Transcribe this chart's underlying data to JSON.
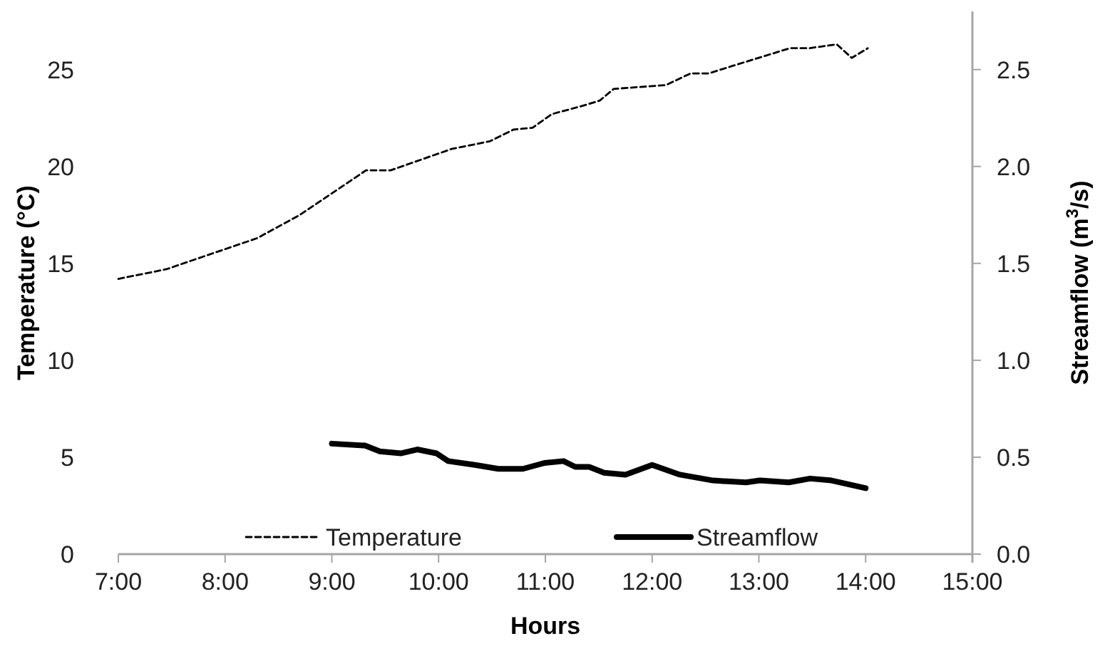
{
  "chart_data": {
    "type": "line",
    "xlabel": "Hours",
    "ylabel": "Temperature (°C)",
    "y2label": "Streamflow (m$^{3}$/s)",
    "xlim": [
      7,
      15
    ],
    "xticks": [
      {
        "value": 7,
        "label": "7:00"
      },
      {
        "value": 8,
        "label": "8:00"
      },
      {
        "value": 9,
        "label": "9:00"
      },
      {
        "value": 10,
        "label": "10:00"
      },
      {
        "value": 11,
        "label": "11:00"
      },
      {
        "value": 12,
        "label": "12:00"
      },
      {
        "value": 13,
        "label": "13:00"
      },
      {
        "value": 14,
        "label": "14:00"
      },
      {
        "value": 15,
        "label": "15:00"
      }
    ],
    "ylim": [
      0,
      28
    ],
    "yticks": [
      0,
      5,
      10,
      15,
      20,
      25
    ],
    "y2lim": [
      0,
      2.8
    ],
    "y2ticks": [
      {
        "value": 0,
        "label": "0.0"
      },
      {
        "value": 0.5,
        "label": "0.5"
      },
      {
        "value": 1,
        "label": "1.0"
      },
      {
        "value": 1.5,
        "label": "1.5"
      },
      {
        "value": 2,
        "label": "2.0"
      },
      {
        "value": 2.5,
        "label": "2.5"
      }
    ],
    "grid": false,
    "legend": "bottom",
    "series": [
      {
        "name": "Temperature",
        "color": "#000000",
        "line_style": "dashed",
        "x": [
          7.0,
          7.45,
          8.3,
          8.7,
          9.32,
          9.55,
          10.12,
          10.48,
          10.7,
          10.88,
          11.06,
          11.33,
          11.51,
          11.64,
          12.13,
          12.36,
          12.53,
          12.76,
          13.29,
          13.47,
          13.73,
          13.87,
          14.02
        ],
        "values": [
          14.2,
          14.7,
          16.3,
          17.5,
          19.8,
          19.8,
          20.9,
          21.3,
          21.9,
          22.0,
          22.7,
          23.1,
          23.4,
          24.0,
          24.2,
          24.8,
          24.8,
          25.2,
          26.1,
          26.1,
          26.3,
          25.6,
          26.1
        ]
      },
      {
        "name": "Streamflow",
        "color": "#000000",
        "line_style": "solid",
        "axis": "y2",
        "x": [
          9.0,
          9.31,
          9.45,
          9.65,
          9.8,
          9.98,
          10.09,
          10.34,
          10.56,
          10.79,
          10.99,
          11.17,
          11.28,
          11.41,
          11.55,
          11.75,
          12.0,
          12.26,
          12.57,
          12.88,
          13.01,
          13.28,
          13.48,
          13.68,
          14.0
        ],
        "values": [
          0.57,
          0.56,
          0.53,
          0.52,
          0.54,
          0.52,
          0.48,
          0.46,
          0.44,
          0.44,
          0.47,
          0.48,
          0.45,
          0.45,
          0.42,
          0.41,
          0.46,
          0.41,
          0.38,
          0.37,
          0.38,
          0.37,
          0.39,
          0.38,
          0.34
        ]
      }
    ]
  }
}
